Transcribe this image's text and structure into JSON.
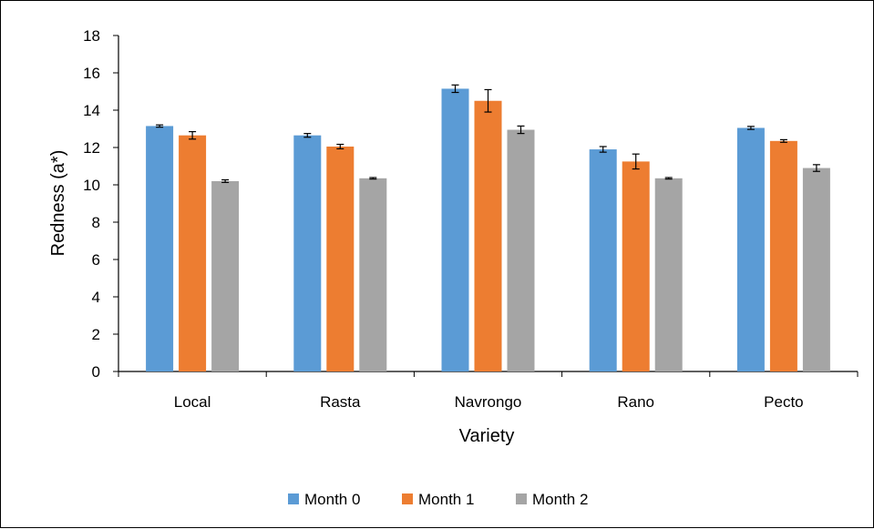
{
  "chart_data": {
    "type": "bar",
    "title": "",
    "xlabel": "Variety",
    "ylabel": "Redness (a*)",
    "ylim": [
      0,
      18
    ],
    "yticks": [
      0,
      2,
      4,
      6,
      8,
      10,
      12,
      14,
      16,
      18
    ],
    "grid": false,
    "legend_position": "bottom",
    "categories": [
      "Local",
      "Rasta",
      "Navrongo",
      "Rano",
      "Pecto"
    ],
    "series": [
      {
        "name": "Month 0",
        "color": "#5B9BD5",
        "values": [
          13.15,
          12.65,
          15.15,
          11.9,
          13.05
        ],
        "errors": [
          0.06,
          0.1,
          0.2,
          0.15,
          0.08
        ]
      },
      {
        "name": "Month 1",
        "color": "#ED7D31",
        "values": [
          12.65,
          12.05,
          14.5,
          11.25,
          12.35
        ],
        "errors": [
          0.2,
          0.12,
          0.6,
          0.4,
          0.07
        ]
      },
      {
        "name": "Month 2",
        "color": "#A5A5A5",
        "values": [
          10.2,
          10.35,
          12.95,
          10.35,
          10.9
        ],
        "errors": [
          0.07,
          0.04,
          0.2,
          0.04,
          0.18
        ]
      }
    ]
  }
}
